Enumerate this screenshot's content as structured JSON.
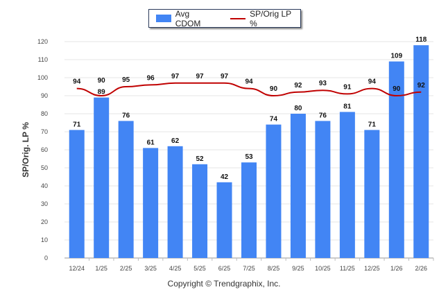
{
  "chart_data": {
    "type": "bar",
    "categories": [
      "12/24",
      "1/25",
      "2/25",
      "3/25",
      "4/25",
      "5/25",
      "6/25",
      "7/25",
      "8/25",
      "9/25",
      "10/25",
      "11/25",
      "12/25",
      "1/26",
      "2/26"
    ],
    "series": [
      {
        "name": "Avg CDOM",
        "type": "bar",
        "color": "#4285f4",
        "values": [
          71,
          89,
          76,
          61,
          62,
          52,
          42,
          53,
          74,
          80,
          76,
          81,
          71,
          109,
          118
        ]
      },
      {
        "name": "SP/Orig LP %",
        "type": "line",
        "color": "#c00000",
        "values": [
          94,
          90,
          95,
          96,
          97,
          97,
          97,
          94,
          90,
          92,
          93,
          91,
          94,
          90,
          92
        ]
      }
    ],
    "ylabel": "SP/Orig. LP %",
    "ylim": [
      0,
      120
    ],
    "yticks": [
      0,
      10,
      20,
      30,
      40,
      50,
      60,
      70,
      80,
      90,
      100,
      110,
      120
    ],
    "grid": true,
    "legend": "top-center"
  },
  "footer": "Copyright © Trendgraphix, Inc."
}
